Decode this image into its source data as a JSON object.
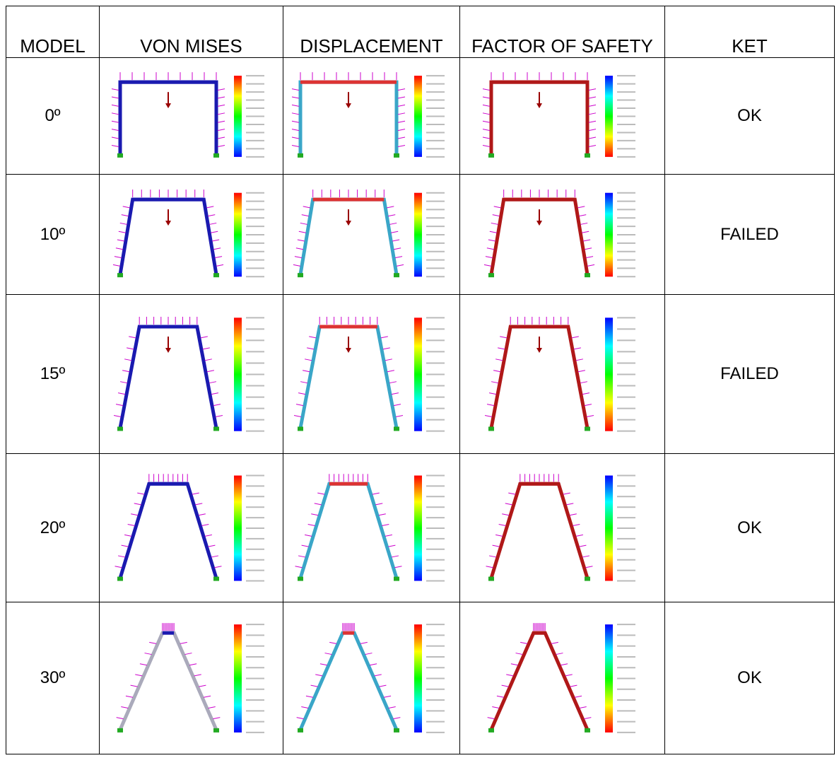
{
  "header": [
    "MODEL",
    "VON MISES",
    "DISPLACEMENT",
    "FACTOR OF SAFETY",
    "KET"
  ],
  "rows": [
    {
      "model": "0º",
      "ket": "OK"
    },
    {
      "model": "10º",
      "ket": "FAILED"
    },
    {
      "model": "15º",
      "ket": "FAILED"
    },
    {
      "model": "20º",
      "ket": "OK"
    },
    {
      "model": "30º",
      "ket": "OK"
    }
  ]
}
